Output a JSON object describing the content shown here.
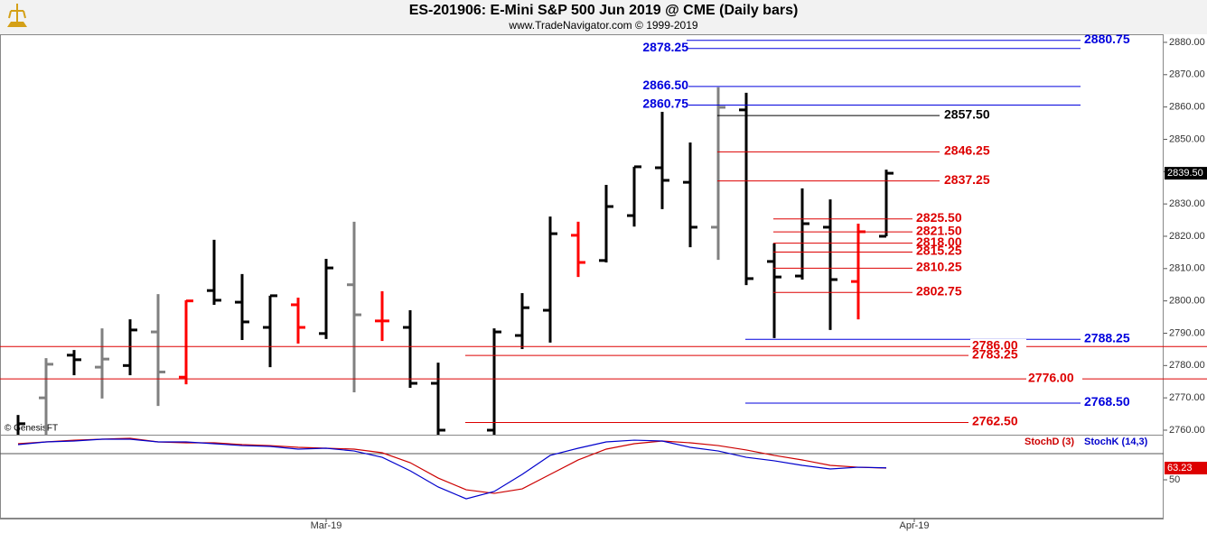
{
  "chart_data": [
    {
      "type": "ohlc",
      "title": "ES-201906:  E-Mini S&P 500 Jun 2019 @ CME  (Daily bars)",
      "subtitle": "www.TradeNavigator.com © 1999-2019",
      "watermark": "© GenesisFT",
      "categories": [
        null,
        null,
        null,
        null,
        null,
        null,
        null,
        null,
        null,
        null,
        null,
        "Mar-19",
        null,
        null,
        null,
        null,
        null,
        null,
        null,
        null,
        null,
        null,
        null,
        null,
        null,
        null,
        null,
        null,
        null,
        null,
        null,
        null,
        "Apr-19"
      ],
      "open": [
        2758,
        2770,
        2783.2,
        2779.5,
        2780,
        2790.4,
        2776.4,
        2803.2,
        2799.6,
        2791.8,
        2798.8,
        2789.9,
        2805,
        2793.8,
        2791.8,
        2774.5,
        null,
        2760,
        2789.3,
        2797.1,
        2820.3,
        2812.5,
        2826.4,
        2841.2,
        2836.7,
        2822.8,
        2859.1,
        2812.2,
        2807.7,
        2822.8,
        2806,
        2820,
        null
      ],
      "high": [
        2764.7,
        2782.3,
        2784.8,
        2791.5,
        2794.3,
        2802.1,
        2800.2,
        2818.9,
        2808.3,
        2801.6,
        2801,
        2813,
        2824.5,
        2803,
        2797.1,
        2780.9,
        null,
        2791.5,
        2802.4,
        2826.1,
        2824.5,
        2835.9,
        2841.5,
        2858.5,
        2849,
        2866.1,
        2864.4,
        2817.8,
        2834.8,
        2831.4,
        2823.9,
        2840.6,
        null
      ],
      "low": [
        2755,
        2756,
        2777,
        2769.8,
        2777,
        2767.5,
        2774.2,
        2798.8,
        2787.9,
        2779.5,
        2786.8,
        2788.2,
        2771.7,
        2787.6,
        2773.1,
        2758,
        null,
        2758,
        2785.1,
        2787.1,
        2807.4,
        2811.9,
        2823,
        2828.4,
        2816.6,
        2812.7,
        2804.9,
        2788.5,
        2806.6,
        2791,
        2794.3,
        2820,
        null
      ],
      "close": [
        2762,
        2780.4,
        2781.8,
        2782,
        2791,
        2778,
        2800,
        2800.2,
        2793.5,
        2801.6,
        2791.8,
        2810.2,
        2795.7,
        2793.8,
        2774.5,
        2760,
        null,
        2790.4,
        2797.9,
        2820.8,
        2811.9,
        2829.2,
        2841.5,
        2837.3,
        2822.8,
        2859.9,
        2806.9,
        2807.4,
        2823.9,
        2806.6,
        2821.4,
        2839.5,
        null
      ],
      "bar_colors": [
        "#000000",
        "#808080",
        "#000000",
        "#808080",
        "#000000",
        "#808080",
        "#ff0000",
        "#000000",
        "#000000",
        "#000000",
        "#ff0000",
        "#000000",
        "#808080",
        "#ff0000",
        "#000000",
        "#000000",
        null,
        "#000000",
        "#000000",
        "#000000",
        "#ff0000",
        "#000000",
        "#000000",
        "#000000",
        "#000000",
        "#808080",
        "#000000",
        "#000000",
        "#000000",
        "#000000",
        "#ff0000",
        "#000000",
        null
      ],
      "ylim": [
        2758.6,
        2882.5
      ],
      "yticks": [
        {
          "value": 2760,
          "label": "2760.00"
        },
        {
          "value": 2770,
          "label": "2770.00"
        },
        {
          "value": 2780,
          "label": "2780.00"
        },
        {
          "value": 2790,
          "label": "2790.00"
        },
        {
          "value": 2800,
          "label": "2800.00"
        },
        {
          "value": 2810,
          "label": "2810.00"
        },
        {
          "value": 2820,
          "label": "2820.00"
        },
        {
          "value": 2830,
          "label": "2830.00"
        },
        {
          "value": 2840,
          "label": "2840.00"
        },
        {
          "value": 2850,
          "label": "2850.00"
        },
        {
          "value": 2860,
          "label": "2860.00"
        },
        {
          "value": 2870,
          "label": "2870.00"
        },
        {
          "value": 2880,
          "label": "2880.00"
        }
      ],
      "last_price": {
        "value": 2839.5,
        "label": "2839.50"
      },
      "levels": [
        {
          "value": 2880.75,
          "label": "2880.75",
          "color": "#0000dd"
        },
        {
          "value": 2878.25,
          "label": "2878.25",
          "color": "#0000dd"
        },
        {
          "value": 2866.5,
          "label": "2866.50",
          "color": "#0000dd"
        },
        {
          "value": 2860.75,
          "label": "2860.75",
          "color": "#0000dd"
        },
        {
          "value": 2857.5,
          "label": "2857.50",
          "color": "#000000"
        },
        {
          "value": 2846.25,
          "label": "2846.25",
          "color": "#dd0000"
        },
        {
          "value": 2837.25,
          "label": "2837.25",
          "color": "#dd0000"
        },
        {
          "value": 2825.5,
          "label": "2825.50",
          "color": "#dd0000"
        },
        {
          "value": 2821.5,
          "label": "2821.50",
          "color": "#dd0000"
        },
        {
          "value": 2818,
          "label": "2818.00",
          "color": "#dd0000"
        },
        {
          "value": 2815.25,
          "label": "2815.25",
          "color": "#dd0000"
        },
        {
          "value": 2810.25,
          "label": "2810.25",
          "color": "#dd0000"
        },
        {
          "value": 2802.75,
          "label": "2802.75",
          "color": "#dd0000"
        },
        {
          "value": 2788.25,
          "label": "2788.25",
          "color": "#0000dd"
        },
        {
          "value": 2786,
          "label": "2786.00",
          "color": "#dd0000"
        },
        {
          "value": 2783.25,
          "label": "2783.25",
          "color": "#dd0000"
        },
        {
          "value": 2776,
          "label": "2776.00",
          "color": "#dd0000"
        },
        {
          "value": 2768.5,
          "label": "2768.50",
          "color": "#0000dd"
        },
        {
          "value": 2762.5,
          "label": "2762.50",
          "color": "#dd0000"
        }
      ]
    },
    {
      "type": "line",
      "series": [
        {
          "name": "StochD (3)",
          "color": "#cc0000",
          "values": [
            90.7,
            92.7,
            94.7,
            95.8,
            96.8,
            92.7,
            91.7,
            91.7,
            89.7,
            88.6,
            86.6,
            85.6,
            84.6,
            80.5,
            69.3,
            52.0,
            38.8,
            34.7,
            39.8,
            56.1,
            72.4,
            84.6,
            90.7,
            93.7,
            91.7,
            88.6,
            83.6,
            77.5,
            72.4,
            66.3,
            64.2,
            63.23,
            null
          ]
        },
        {
          "name": "StochK (14,3)",
          "color": "#0000cc",
          "values": [
            89.7,
            92.7,
            93.7,
            95.8,
            95.8,
            92.7,
            92.7,
            90.7,
            88.6,
            87.6,
            84.6,
            85.6,
            82.5,
            75.4,
            60.2,
            41.9,
            28.6,
            36.8,
            56.1,
            77.5,
            85.6,
            92.7,
            94.7,
            93.7,
            86.6,
            82.5,
            75.4,
            71.4,
            66.3,
            62.2,
            64.2,
            63.5,
            null
          ]
        }
      ],
      "ylim": [
        6.3,
        97.8
      ],
      "yticks": [
        50
      ],
      "reference_lines": [
        80
      ],
      "last_value": {
        "value": 63.23,
        "label": "63.23"
      }
    }
  ]
}
